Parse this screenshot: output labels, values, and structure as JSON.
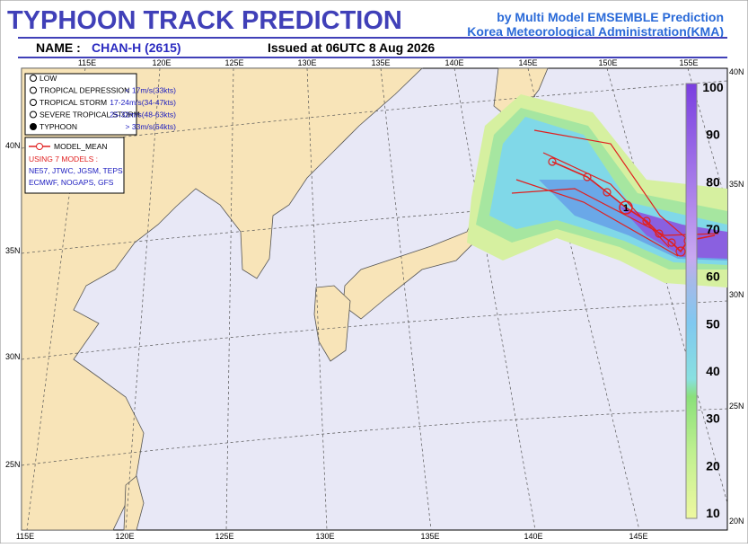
{
  "header": {
    "title": "TYPHOON  TRACK  PREDICTION",
    "source_line1": "by Multi Model EMSEMBLE Prediction",
    "source_line2": "Korea Meteorological Administration(KMA)",
    "name_label": "NAME :",
    "name_value": "CHAN-H (2615)",
    "issued": "Issued at  06UTC  8 Aug 2026"
  },
  "legend": {
    "items": [
      {
        "label": "LOW",
        "range": ""
      },
      {
        "label": "TROPICAL DEPRESSION",
        "range": "< 17m/s(33kts)"
      },
      {
        "label": "TROPICAL STORM",
        "range": "17-24m/s(34-47kts)"
      },
      {
        "label": "SEVERE TROPICAL STORM",
        "range": "25-32m/s(48-63kts)"
      },
      {
        "label": "TYPHOON",
        "range": "> 33m/s(64kts)"
      }
    ]
  },
  "models": {
    "mean_label": "MODEL_MEAN",
    "count_label": "USING 7 MODELS :",
    "line1": "NE57, JTWC, JGSM, TEPS",
    "line2": "ECMWF, NOGAPS, GFS"
  },
  "map": {
    "top_lon": [
      "115E",
      "120E",
      "125E",
      "130E",
      "135E",
      "140E",
      "145E",
      "150E",
      "155E"
    ],
    "bottom_lon": [
      "115E",
      "120E",
      "125E",
      "130E",
      "135E",
      "140E",
      "145E"
    ],
    "left_lat": [
      "40N",
      "35N",
      "30N",
      "25N"
    ],
    "right_lat": [
      "40N",
      "35N",
      "30N",
      "25N",
      "20N"
    ],
    "track_marker": "1"
  },
  "colorbar": {
    "labels": [
      100,
      90,
      80,
      70,
      60,
      50,
      40,
      30,
      20,
      10
    ]
  }
}
